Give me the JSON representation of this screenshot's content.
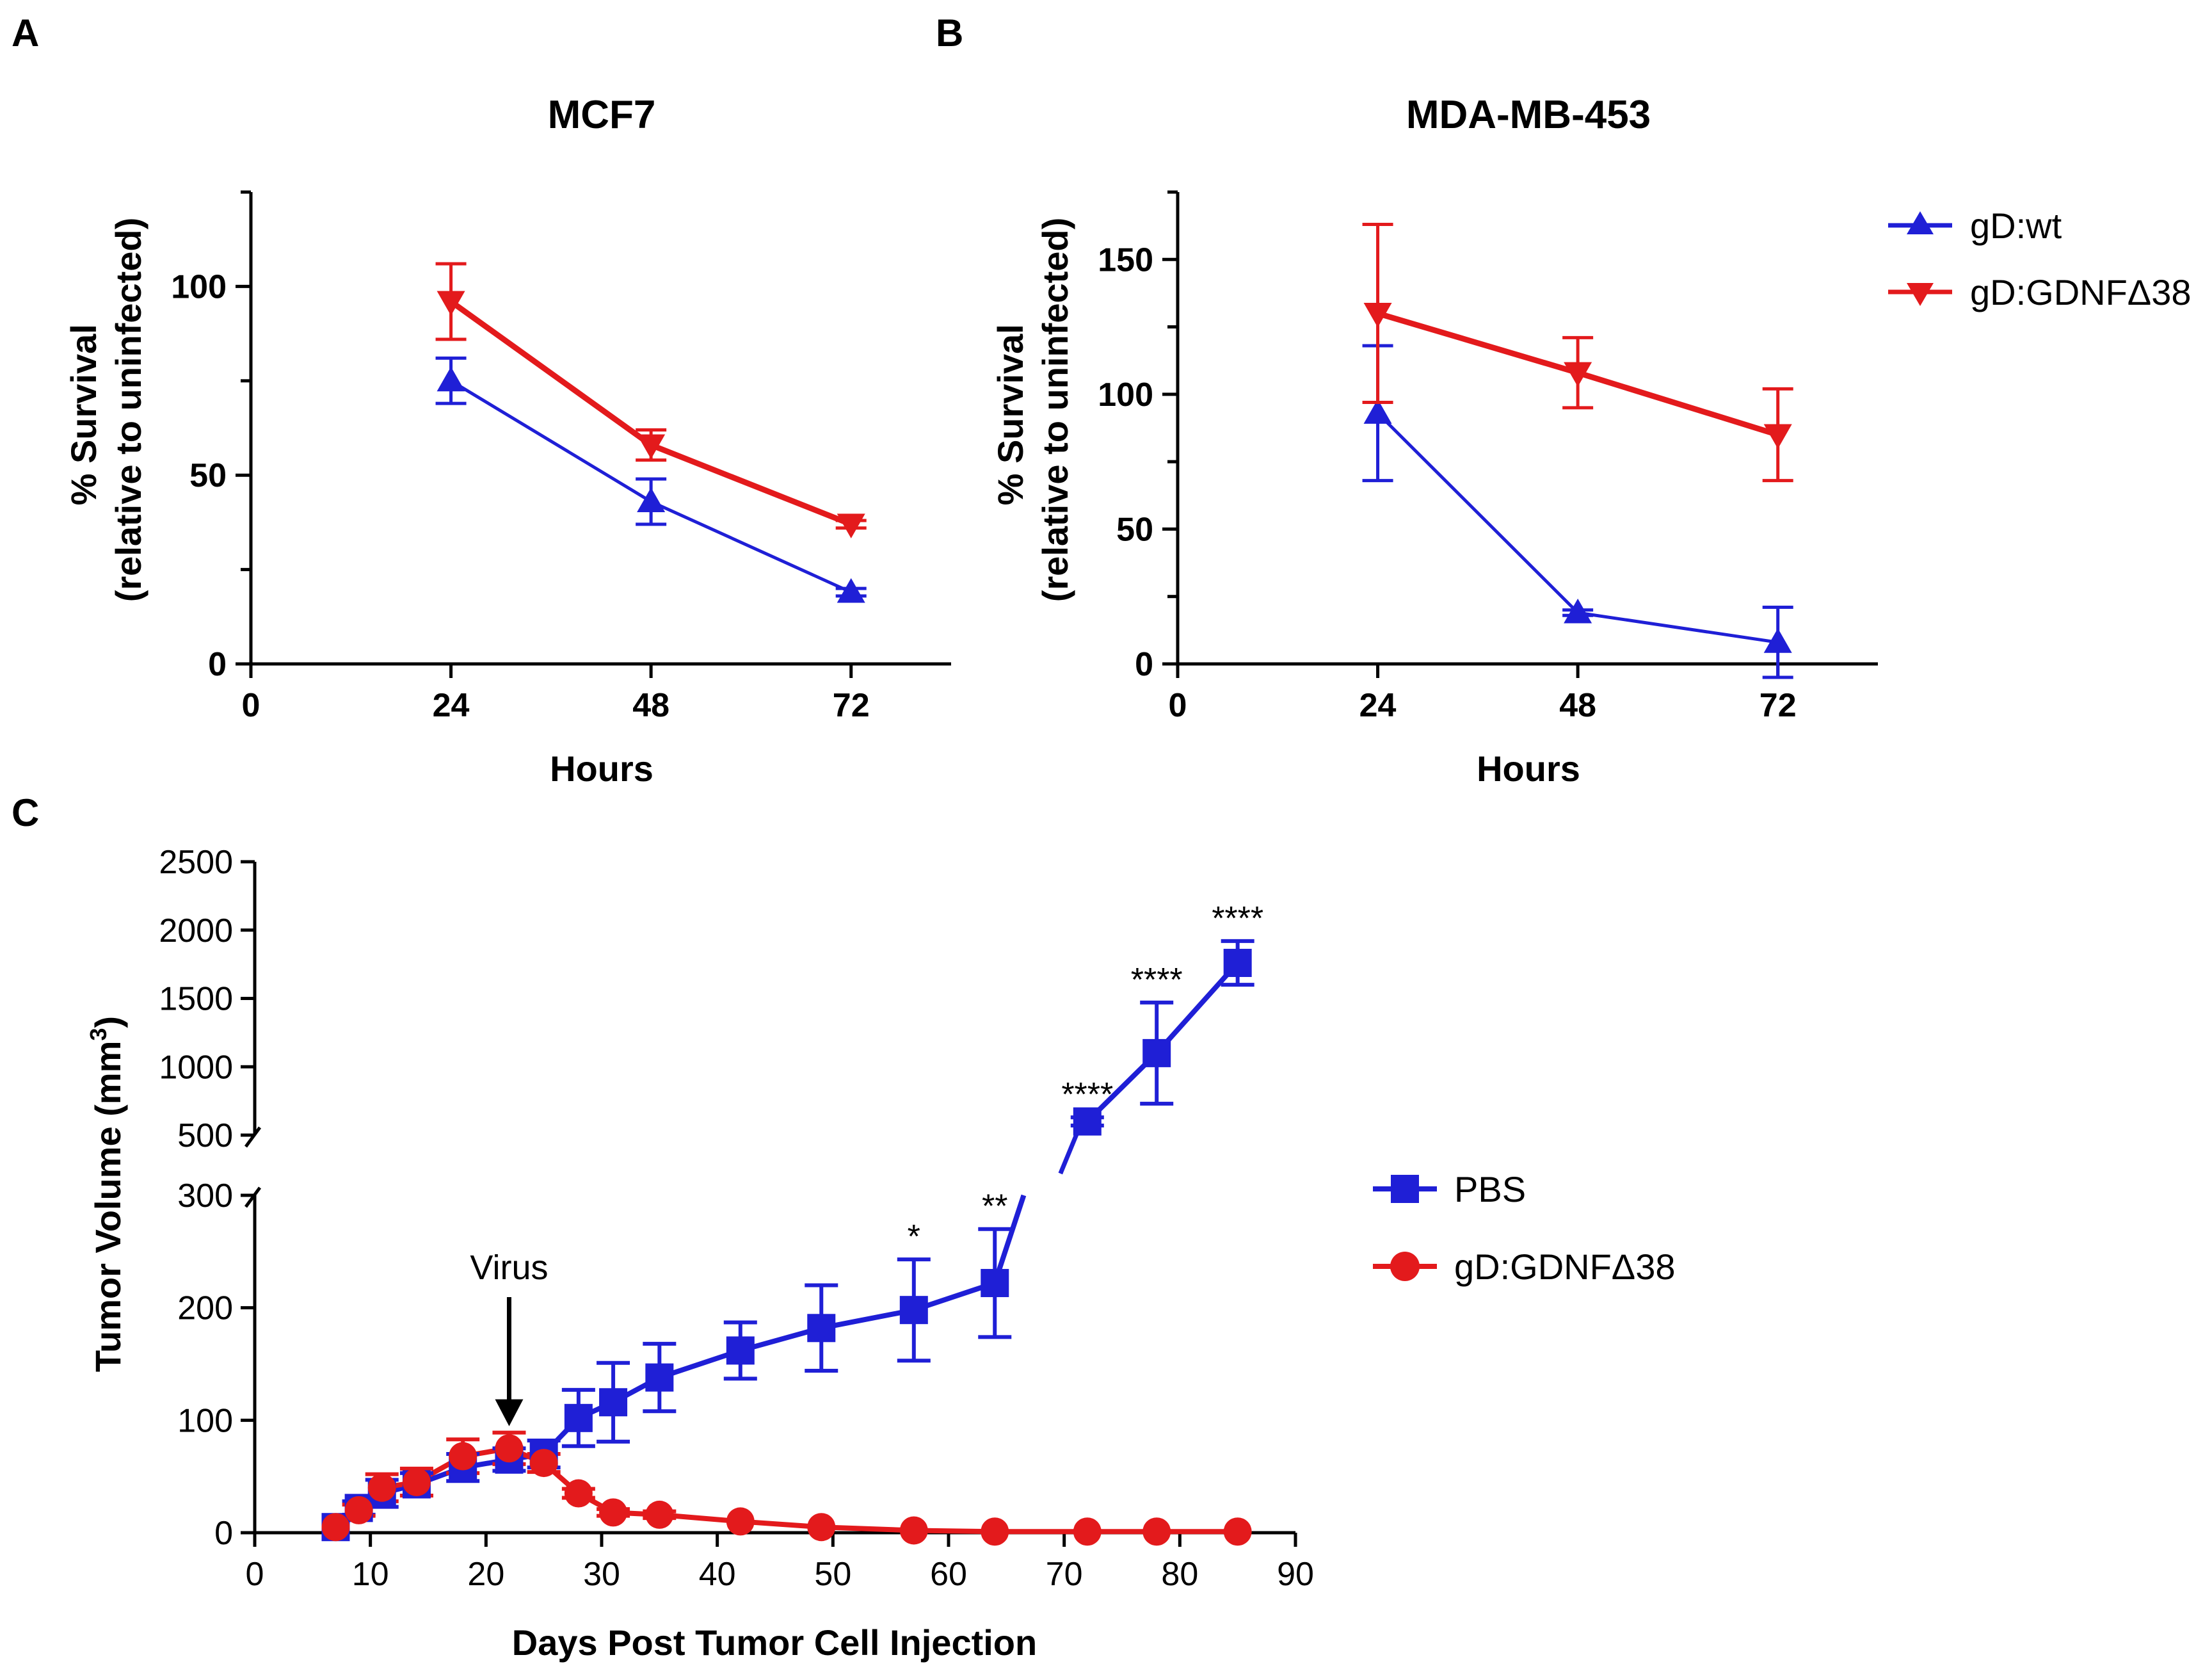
{
  "panel_labels": [
    "A",
    "B",
    "C"
  ],
  "colors": {
    "blue": "#1f1fd6",
    "red": "#e31a1c",
    "axis": "#000000"
  },
  "legend_ab": [
    "gD:wt",
    "gD:GDNFΔ38"
  ],
  "legend_c": [
    "PBS",
    "gD:GDNFΔ38"
  ],
  "chart_data": [
    {
      "type": "line",
      "panel": "A",
      "title": "MCF7",
      "xlabel": "Hours",
      "ylabel_line1": "% Survival",
      "ylabel_line2": "(relative to uninfected)",
      "xlim": [
        0,
        84
      ],
      "ylim": [
        0,
        125
      ],
      "xticks": [
        "0",
        "24",
        "48",
        "72"
      ],
      "yticks": [
        "0",
        "50",
        "100"
      ],
      "series": [
        {
          "name": "gD:wt",
          "x": [
            24,
            48,
            72
          ],
          "values": [
            75,
            43,
            19
          ],
          "errors": [
            6,
            6,
            1
          ]
        },
        {
          "name": "gD:GDNFΔ38",
          "x": [
            24,
            48,
            72
          ],
          "values": [
            96,
            58,
            37
          ],
          "errors": [
            10,
            4,
            1
          ]
        }
      ]
    },
    {
      "type": "line",
      "panel": "B",
      "title": "MDA-MB-453",
      "xlabel": "Hours",
      "ylabel_line1": "% Survival",
      "ylabel_line2": "(relative to uninfected)",
      "xlim": [
        0,
        84
      ],
      "ylim": [
        0,
        175
      ],
      "xticks": [
        "0",
        "24",
        "48",
        "72"
      ],
      "yticks": [
        "0",
        "50",
        "100",
        "150"
      ],
      "series": [
        {
          "name": "gD:wt",
          "x": [
            24,
            48,
            72
          ],
          "values": [
            93,
            19,
            8
          ],
          "errors": [
            25,
            1,
            13
          ]
        },
        {
          "name": "gD:GDNFΔ38",
          "x": [
            24,
            48,
            72
          ],
          "values": [
            130,
            108,
            85
          ],
          "errors": [
            33,
            13,
            17
          ]
        }
      ]
    },
    {
      "type": "line",
      "panel": "C",
      "title": "",
      "xlabel": "Days Post Tumor Cell Injection",
      "ylabel": "Tumor Volume (mm",
      "ylabel_sup": "3",
      "ylabel_end": ")",
      "xlim": [
        0,
        90
      ],
      "xticks": [
        "0",
        "10",
        "20",
        "30",
        "40",
        "50",
        "60",
        "70",
        "80",
        "90"
      ],
      "ylim_lower": [
        0,
        300
      ],
      "yticks_lower": [
        "0",
        "100",
        "200",
        "300"
      ],
      "ylim_upper": [
        500,
        2500
      ],
      "yticks_upper": [
        "500",
        "1000",
        "1500",
        "2000",
        "2500"
      ],
      "annotation_label": "Virus",
      "annotation_x": 22,
      "series": [
        {
          "name": "PBS",
          "x": [
            7,
            9,
            11,
            14,
            18,
            22,
            25,
            28,
            31,
            35,
            42,
            49,
            57,
            64,
            72,
            78,
            85
          ],
          "values": [
            5,
            22,
            35,
            43,
            58,
            65,
            70,
            102,
            116,
            138,
            162,
            182,
            198,
            222,
            600,
            1100,
            1760
          ],
          "errors": [
            2,
            6,
            12,
            10,
            12,
            10,
            12,
            25,
            35,
            30,
            25,
            38,
            45,
            48,
            30,
            370,
            160
          ]
        },
        {
          "name": "gD:GDNFΔ38",
          "x": [
            7,
            9,
            11,
            14,
            18,
            22,
            25,
            28,
            31,
            35,
            42,
            49,
            57,
            64,
            72,
            78,
            85
          ],
          "values": [
            5,
            20,
            40,
            45,
            68,
            75,
            62,
            35,
            18,
            16,
            10,
            5,
            2,
            1,
            1,
            1,
            1
          ],
          "errors": [
            2,
            5,
            12,
            12,
            15,
            14,
            8,
            4,
            3,
            3,
            2,
            1,
            1,
            1,
            1,
            1,
            1
          ]
        }
      ],
      "significance": [
        {
          "x": 57,
          "label": "*"
        },
        {
          "x": 64,
          "label": "**"
        },
        {
          "x": 72,
          "label": "****"
        },
        {
          "x": 78,
          "label": "****"
        },
        {
          "x": 85,
          "label": "****"
        }
      ]
    }
  ]
}
